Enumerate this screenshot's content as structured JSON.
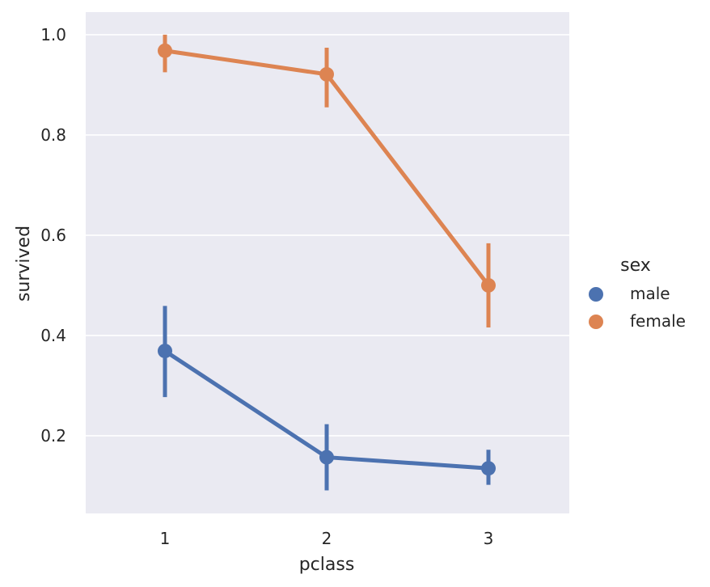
{
  "chart_data": {
    "type": "line",
    "xlabel": "pclass",
    "ylabel": "survived",
    "categories": [
      "1",
      "2",
      "3"
    ],
    "y_ticks": [
      "0.2",
      "0.4",
      "0.6",
      "0.8",
      "1.0"
    ],
    "ylim": [
      0.045,
      1.045
    ],
    "grid": true,
    "legend_placement": "right",
    "legend": {
      "title": "sex",
      "entries": [
        "male",
        "female"
      ]
    },
    "series": [
      {
        "name": "male",
        "color": "#4c72b0",
        "values": [
          0.369,
          0.157,
          0.135
        ],
        "ci_low": [
          0.277,
          0.091,
          0.102
        ],
        "ci_high": [
          0.459,
          0.223,
          0.172
        ]
      },
      {
        "name": "female",
        "color": "#dd8452",
        "values": [
          0.968,
          0.921,
          0.5
        ],
        "ci_low": [
          0.925,
          0.855,
          0.416
        ],
        "ci_high": [
          1.0,
          0.974,
          0.584
        ]
      }
    ]
  }
}
